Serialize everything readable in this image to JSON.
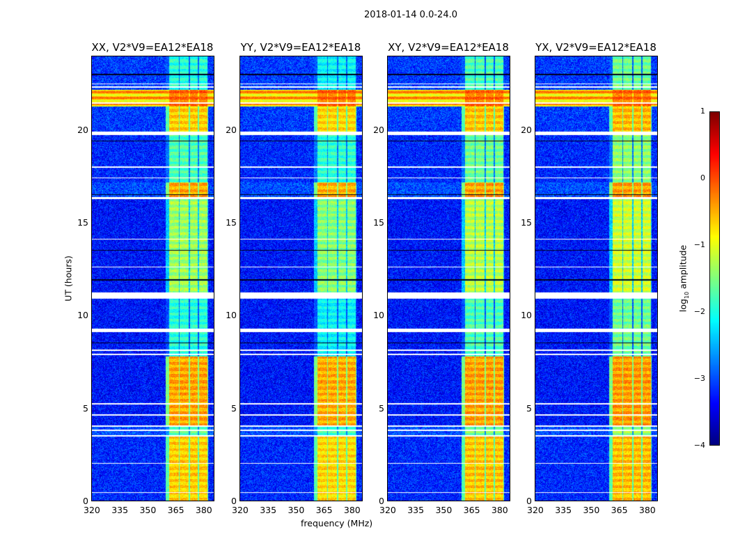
{
  "chart_data": {
    "type": "heatmap",
    "title": "2018-01-14 0.0-24.0",
    "xlabel": "frequency (MHz)",
    "ylabel": "UT (hours)",
    "xlim": [
      320,
      386
    ],
    "ylim": [
      0,
      24
    ],
    "xticks": [
      "320",
      "335",
      "350",
      "365",
      "380"
    ],
    "xtick_values": [
      320,
      335,
      350,
      365,
      380
    ],
    "yticks": [
      "0",
      "5",
      "10",
      "15",
      "20"
    ],
    "ytick_values": [
      0,
      5,
      10,
      15,
      20
    ],
    "panels": [
      {
        "title": "XX, V2*V9=EA12*EA18",
        "rfi_strength": 1.0
      },
      {
        "title": "YY, V2*V9=EA12*EA18",
        "rfi_strength": 1.1
      },
      {
        "title": "XY, V2*V9=EA12*EA18",
        "rfi_strength": 0.9
      },
      {
        "title": "YX, V2*V9=EA12*EA18",
        "rfi_strength": 0.8
      }
    ],
    "colorbar": {
      "label": "log10 amplitude",
      "label_main": "log",
      "label_sub": "10",
      "label_rest": " amplitude",
      "range": [
        -4,
        1
      ],
      "ticks": [
        "−4",
        "−3",
        "−2",
        "−1",
        "0",
        "1"
      ],
      "tick_values": [
        -4,
        -3,
        -2,
        -1,
        0,
        1
      ],
      "colormap": "jet"
    },
    "bright_channels_mhz": [
      [
        362,
        367
      ],
      [
        367.5,
        372.5
      ],
      [
        373,
        377.5
      ],
      [
        378,
        382.5
      ]
    ],
    "time_segments": [
      {
        "from": 0,
        "to": 3.5,
        "band": -0.5,
        "background": -3.2
      },
      {
        "from": 3.5,
        "to": 4.0,
        "band": -1.5,
        "background": -3.0
      },
      {
        "from": 4.0,
        "to": 7.8,
        "band": -0.3,
        "background": -3.3
      },
      {
        "from": 7.8,
        "to": 11.0,
        "band": -1.8,
        "background": -3.3
      },
      {
        "from": 11.0,
        "to": 16.4,
        "band": -1.2,
        "background": -3.3
      },
      {
        "from": 16.4,
        "to": 17.2,
        "band": -0.3,
        "background": -3.0
      },
      {
        "from": 17.2,
        "to": 19.8,
        "band": -1.6,
        "background": -3.2
      },
      {
        "from": 19.8,
        "to": 21.3,
        "band": -0.5,
        "background": -3.1
      },
      {
        "from": 21.3,
        "to": 22.2,
        "band": 0.0,
        "background": -0.6
      },
      {
        "from": 22.2,
        "to": 24.0,
        "band": -1.8,
        "background": -3.1
      }
    ],
    "flagged_hours": [
      [
        0.4,
        0.45
      ],
      [
        2.0,
        2.05
      ],
      [
        3.45,
        3.55
      ],
      [
        3.75,
        3.85
      ],
      [
        4.0,
        4.05
      ],
      [
        4.6,
        4.65
      ],
      [
        5.2,
        5.25
      ],
      [
        7.85,
        7.95
      ],
      [
        8.1,
        8.15
      ],
      [
        9.1,
        9.3
      ],
      [
        10.9,
        11.25
      ],
      [
        12.6,
        12.65
      ],
      [
        14.1,
        14.15
      ],
      [
        16.3,
        16.4
      ],
      [
        17.4,
        17.45
      ],
      [
        18.0,
        18.05
      ],
      [
        19.75,
        19.95
      ],
      [
        21.45,
        21.5
      ],
      [
        22.3,
        22.4
      ],
      [
        22.5,
        22.55
      ]
    ],
    "zero_hours": [
      [
        11.9,
        11.95
      ],
      [
        13.5,
        13.55
      ],
      [
        16.5,
        16.55
      ],
      [
        19.4,
        19.45
      ],
      [
        23.0,
        23.05
      ],
      [
        8.5,
        8.55
      ]
    ]
  }
}
